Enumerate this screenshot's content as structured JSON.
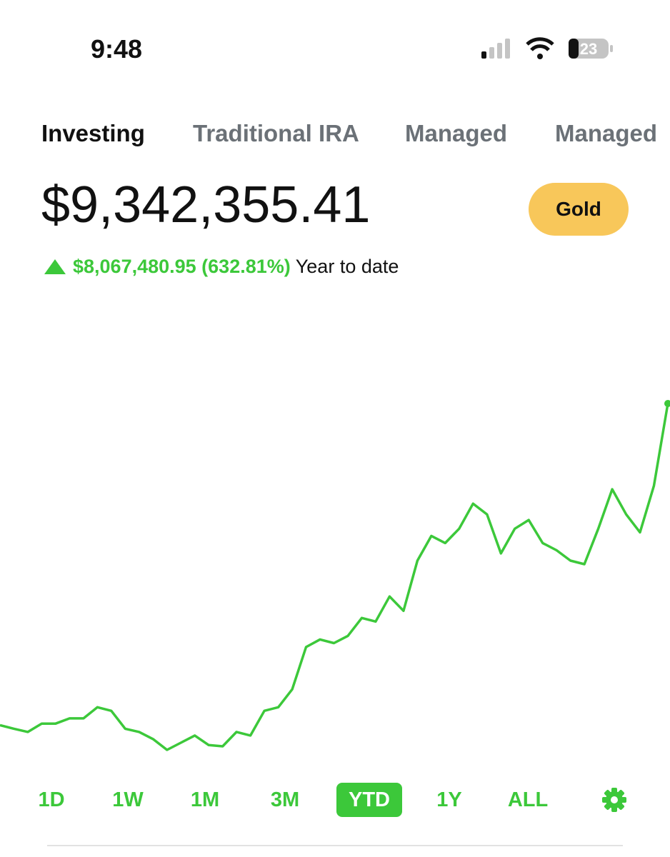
{
  "status_bar": {
    "time": "9:48",
    "battery": "23"
  },
  "tabs": [
    "Investing",
    "Traditional IRA",
    "Managed",
    "Managed"
  ],
  "balance": "$9,342,355.41",
  "badge": "Gold",
  "change": {
    "amount": "$8,067,480.95 (632.81%)",
    "period": "Year to date"
  },
  "chart_data": {
    "type": "line",
    "color": "#3cc83a",
    "values": [
      1270000,
      1180000,
      1100000,
      1310000,
      1310000,
      1440000,
      1440000,
      1720000,
      1630000,
      1180000,
      1100000,
      920000,
      650000,
      830000,
      1010000,
      770000,
      740000,
      1100000,
      1010000,
      1630000,
      1720000,
      2170000,
      3230000,
      3420000,
      3330000,
      3510000,
      3960000,
      3870000,
      4500000,
      4140000,
      5400000,
      6020000,
      5840000,
      6200000,
      6830000,
      6560000,
      5580000,
      6200000,
      6420000,
      5840000,
      5660000,
      5400000,
      5310000,
      6200000,
      7190000,
      6560000,
      6110000,
      7280000,
      9342355.41
    ]
  },
  "ranges": [
    "1D",
    "1W",
    "1M",
    "3M",
    "YTD",
    "1Y",
    "ALL"
  ],
  "selected_range": "YTD"
}
